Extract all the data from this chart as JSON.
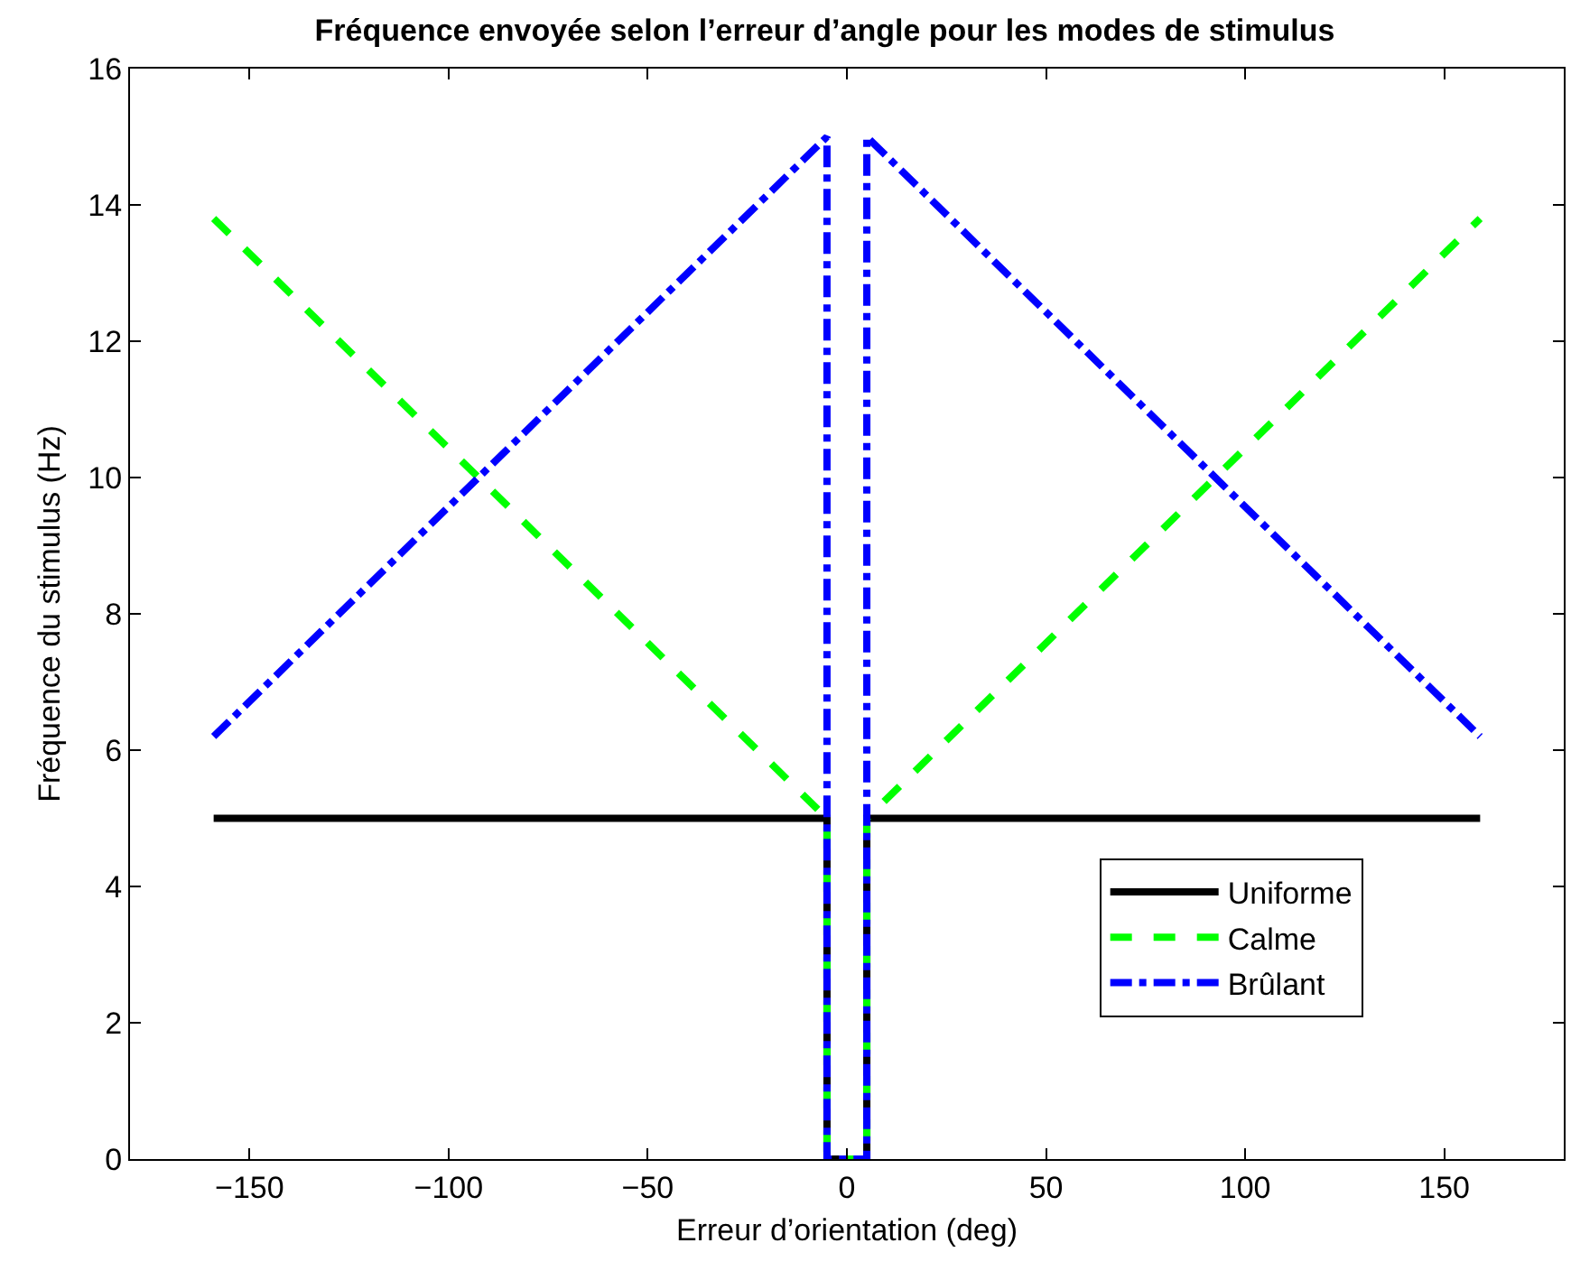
{
  "chart_data": {
    "type": "line",
    "title": "Fréquence envoyée selon l’erreur d’angle pour les modes de stimulus",
    "xlabel": "Erreur d’orientation (deg)",
    "ylabel": "Fréquence du stimulus (Hz)",
    "series": [
      {
        "name": "Uniforme",
        "color": "#000000",
        "line_style": "solid",
        "x": [
          -159,
          -5,
          -5,
          5,
          5,
          159
        ],
        "values": [
          5,
          5,
          0,
          0,
          5,
          5
        ]
      },
      {
        "name": "Calme",
        "color": "#00ff00",
        "line_style": "dashed",
        "x": [
          -159,
          -5,
          -5,
          5,
          5,
          159
        ],
        "values": [
          13.8,
          5,
          0,
          0,
          5,
          13.8
        ]
      },
      {
        "name": "Brûlant",
        "color": "#0000ff",
        "line_style": "dashdot",
        "x": [
          -159,
          -5,
          -5,
          5,
          5,
          159
        ],
        "values": [
          6.2,
          15,
          0,
          0,
          15,
          6.2
        ]
      }
    ],
    "xlim": [
      -180,
      180
    ],
    "xticks": [
      -150,
      -100,
      -50,
      0,
      50,
      100,
      150
    ],
    "ylim": [
      0,
      16
    ],
    "yticks": [
      0,
      2,
      4,
      6,
      8,
      10,
      12,
      14,
      16
    ],
    "grid": false,
    "legend": "bottom right",
    "marker": "none"
  }
}
